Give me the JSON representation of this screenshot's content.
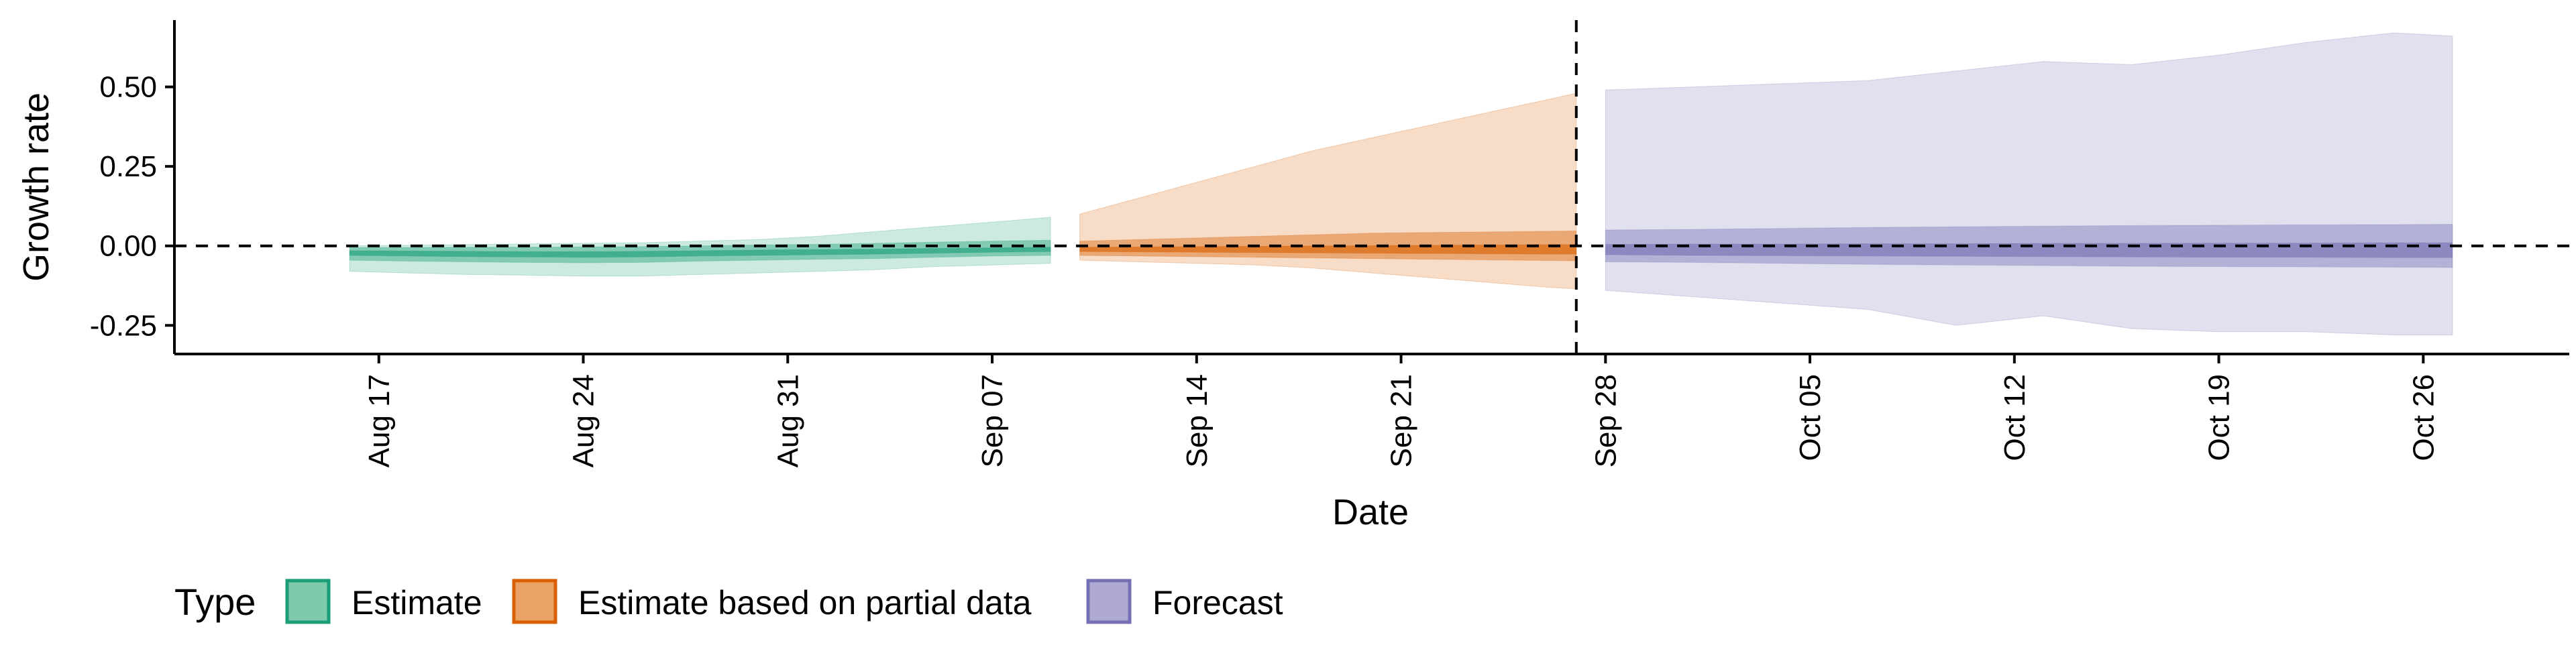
{
  "chart_data": {
    "type": "area",
    "title": "",
    "xlabel": "Date",
    "ylabel": "Growth rate",
    "x_range": [
      "2020-08-10",
      "2020-10-31"
    ],
    "ylim": [
      -0.34,
      0.71
    ],
    "x_ticks": [
      {
        "date": "2020-08-17",
        "label": "Aug 17"
      },
      {
        "date": "2020-08-24",
        "label": "Aug 24"
      },
      {
        "date": "2020-08-31",
        "label": "Aug 31"
      },
      {
        "date": "2020-09-07",
        "label": "Sep 07"
      },
      {
        "date": "2020-09-14",
        "label": "Sep 14"
      },
      {
        "date": "2020-09-21",
        "label": "Sep 21"
      },
      {
        "date": "2020-09-28",
        "label": "Sep 28"
      },
      {
        "date": "2020-10-05",
        "label": "Oct 05"
      },
      {
        "date": "2020-10-12",
        "label": "Oct 12"
      },
      {
        "date": "2020-10-19",
        "label": "Oct 19"
      },
      {
        "date": "2020-10-26",
        "label": "Oct 26"
      }
    ],
    "y_ticks": [
      {
        "value": -0.25,
        "label": "-0.25"
      },
      {
        "value": 0.0,
        "label": "0.00"
      },
      {
        "value": 0.25,
        "label": "0.25"
      },
      {
        "value": 0.5,
        "label": "0.50"
      }
    ],
    "hline": 0,
    "vline": "2020-09-27",
    "grid": false,
    "legend": {
      "position": "bottom",
      "title": "Type",
      "entries": [
        {
          "label": "Estimate",
          "color": "#7fc9ac",
          "border": "#1b9e77"
        },
        {
          "label": "Estimate based on partial data",
          "color": "#eba267",
          "border": "#d95f02"
        },
        {
          "label": "Forecast",
          "color": "#aeaad2",
          "border": "#7570b3"
        }
      ]
    },
    "series": [
      {
        "name": "Estimate",
        "color": "#1b9e77",
        "points": [
          {
            "date": "2020-08-16",
            "lo90": -0.08,
            "lo50": -0.045,
            "lo20": -0.03,
            "hi20": -0.015,
            "hi50": -0.005,
            "hi90": 0.0
          },
          {
            "date": "2020-08-18",
            "lo90": -0.085,
            "lo50": -0.048,
            "lo20": -0.032,
            "hi20": -0.016,
            "hi50": -0.005,
            "hi90": 0.002
          },
          {
            "date": "2020-08-20",
            "lo90": -0.09,
            "lo50": -0.05,
            "lo20": -0.034,
            "hi20": -0.017,
            "hi50": -0.004,
            "hi90": 0.004
          },
          {
            "date": "2020-08-22",
            "lo90": -0.092,
            "lo50": -0.052,
            "lo20": -0.035,
            "hi20": -0.018,
            "hi50": -0.004,
            "hi90": 0.006
          },
          {
            "date": "2020-08-24",
            "lo90": -0.095,
            "lo50": -0.053,
            "lo20": -0.036,
            "hi20": -0.018,
            "hi50": -0.003,
            "hi90": 0.008
          },
          {
            "date": "2020-08-26",
            "lo90": -0.095,
            "lo50": -0.052,
            "lo20": -0.035,
            "hi20": -0.017,
            "hi50": -0.002,
            "hi90": 0.01
          },
          {
            "date": "2020-08-28",
            "lo90": -0.09,
            "lo50": -0.048,
            "lo20": -0.032,
            "hi20": -0.015,
            "hi50": 0.0,
            "hi90": 0.015
          },
          {
            "date": "2020-08-30",
            "lo90": -0.085,
            "lo50": -0.045,
            "lo20": -0.03,
            "hi20": -0.013,
            "hi50": 0.003,
            "hi90": 0.02
          },
          {
            "date": "2020-09-01",
            "lo90": -0.08,
            "lo50": -0.042,
            "lo20": -0.028,
            "hi20": -0.011,
            "hi50": 0.005,
            "hi90": 0.03
          },
          {
            "date": "2020-09-03",
            "lo90": -0.075,
            "lo50": -0.04,
            "lo20": -0.026,
            "hi20": -0.01,
            "hi50": 0.008,
            "hi90": 0.045
          },
          {
            "date": "2020-09-05",
            "lo90": -0.065,
            "lo50": -0.036,
            "lo20": -0.023,
            "hi20": -0.008,
            "hi50": 0.012,
            "hi90": 0.06
          },
          {
            "date": "2020-09-07",
            "lo90": -0.06,
            "lo50": -0.032,
            "lo20": -0.02,
            "hi20": -0.006,
            "hi50": 0.015,
            "hi90": 0.075
          },
          {
            "date": "2020-09-09",
            "lo90": -0.055,
            "lo50": -0.03,
            "lo20": -0.018,
            "hi20": -0.004,
            "hi50": 0.018,
            "hi90": 0.09
          }
        ]
      },
      {
        "name": "Estimate based on partial data",
        "color": "#d95f02",
        "points": [
          {
            "date": "2020-09-10",
            "lo90": -0.045,
            "lo50": -0.03,
            "lo20": -0.018,
            "hi20": -0.004,
            "hi50": 0.015,
            "hi90": 0.1
          },
          {
            "date": "2020-09-12",
            "lo90": -0.05,
            "lo50": -0.032,
            "lo20": -0.019,
            "hi20": -0.003,
            "hi50": 0.02,
            "hi90": 0.15
          },
          {
            "date": "2020-09-14",
            "lo90": -0.055,
            "lo50": -0.034,
            "lo20": -0.02,
            "hi20": -0.002,
            "hi50": 0.025,
            "hi90": 0.2
          },
          {
            "date": "2020-09-16",
            "lo90": -0.06,
            "lo50": -0.036,
            "lo20": -0.021,
            "hi20": -0.001,
            "hi50": 0.03,
            "hi90": 0.25
          },
          {
            "date": "2020-09-18",
            "lo90": -0.07,
            "lo50": -0.038,
            "lo20": -0.022,
            "hi20": 0.0,
            "hi50": 0.035,
            "hi90": 0.3
          },
          {
            "date": "2020-09-20",
            "lo90": -0.085,
            "lo50": -0.04,
            "lo20": -0.023,
            "hi20": 0.001,
            "hi50": 0.04,
            "hi90": 0.34
          },
          {
            "date": "2020-09-22",
            "lo90": -0.1,
            "lo50": -0.042,
            "lo20": -0.024,
            "hi20": 0.002,
            "hi50": 0.042,
            "hi90": 0.38
          },
          {
            "date": "2020-09-24",
            "lo90": -0.115,
            "lo50": -0.044,
            "lo20": -0.025,
            "hi20": 0.003,
            "hi50": 0.044,
            "hi90": 0.42
          },
          {
            "date": "2020-09-26",
            "lo90": -0.13,
            "lo50": -0.046,
            "lo20": -0.026,
            "hi20": 0.004,
            "hi50": 0.046,
            "hi90": 0.46
          },
          {
            "date": "2020-09-27",
            "lo90": -0.135,
            "lo50": -0.047,
            "lo20": -0.026,
            "hi20": 0.004,
            "hi50": 0.047,
            "hi90": 0.48
          }
        ]
      },
      {
        "name": "Forecast",
        "color": "#7570b3",
        "points": [
          {
            "date": "2020-09-28",
            "lo90": -0.14,
            "lo50": -0.05,
            "lo20": -0.028,
            "hi20": 0.005,
            "hi50": 0.05,
            "hi90": 0.49
          },
          {
            "date": "2020-10-01",
            "lo90": -0.16,
            "lo50": -0.052,
            "lo20": -0.03,
            "hi20": 0.006,
            "hi50": 0.052,
            "hi90": 0.5
          },
          {
            "date": "2020-10-04",
            "lo90": -0.18,
            "lo50": -0.055,
            "lo20": -0.031,
            "hi20": 0.006,
            "hi50": 0.055,
            "hi90": 0.51
          },
          {
            "date": "2020-10-07",
            "lo90": -0.2,
            "lo50": -0.058,
            "lo20": -0.032,
            "hi20": 0.007,
            "hi50": 0.058,
            "hi90": 0.52
          },
          {
            "date": "2020-10-10",
            "lo90": -0.25,
            "lo50": -0.06,
            "lo20": -0.033,
            "hi20": 0.007,
            "hi50": 0.06,
            "hi90": 0.55
          },
          {
            "date": "2020-10-13",
            "lo90": -0.22,
            "lo50": -0.062,
            "lo20": -0.034,
            "hi20": 0.008,
            "hi50": 0.062,
            "hi90": 0.58
          },
          {
            "date": "2020-10-16",
            "lo90": -0.26,
            "lo50": -0.064,
            "lo20": -0.035,
            "hi20": 0.008,
            "hi50": 0.064,
            "hi90": 0.57
          },
          {
            "date": "2020-10-19",
            "lo90": -0.27,
            "lo50": -0.065,
            "lo20": -0.036,
            "hi20": 0.009,
            "hi50": 0.065,
            "hi90": 0.6
          },
          {
            "date": "2020-10-22",
            "lo90": -0.27,
            "lo50": -0.066,
            "lo20": -0.036,
            "hi20": 0.009,
            "hi50": 0.066,
            "hi90": 0.64
          },
          {
            "date": "2020-10-25",
            "lo90": -0.28,
            "lo50": -0.067,
            "lo20": -0.037,
            "hi20": 0.01,
            "hi50": 0.067,
            "hi90": 0.67
          },
          {
            "date": "2020-10-27",
            "lo90": -0.28,
            "lo50": -0.068,
            "lo20": -0.037,
            "hi20": 0.01,
            "hi50": 0.068,
            "hi90": 0.66
          }
        ]
      }
    ]
  }
}
